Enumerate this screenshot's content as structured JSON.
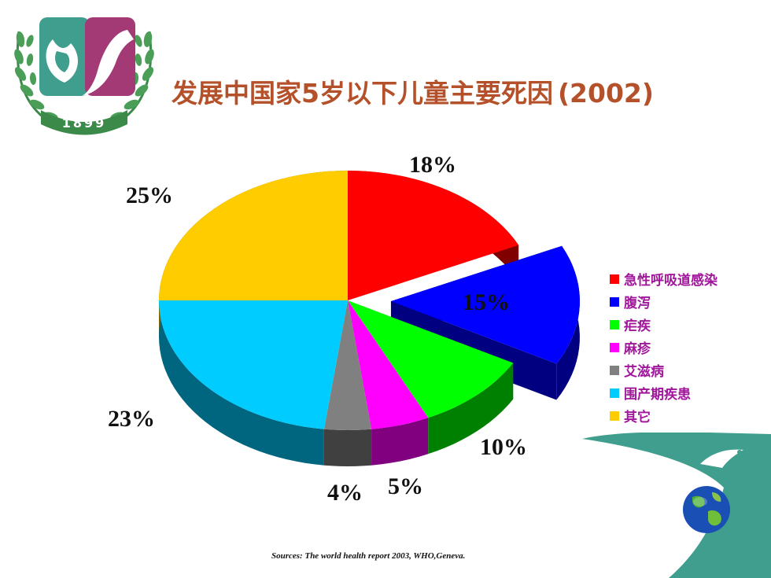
{
  "slide": {
    "title": "发展中国家5岁以下儿童主要死因",
    "title_year": "(2002)",
    "logo_year": "1899",
    "source": "Sources: The world health report 2003, WHO,Geneva."
  },
  "colors": {
    "title": "#b5512a",
    "legend_text": "#a0179b",
    "deco_teal": "#3f9e8e"
  },
  "chart_data": {
    "type": "pie",
    "title": "发展中国家5岁以下儿童主要死因(2002)",
    "legend_position": "right",
    "exploded_slice": "腹泻",
    "slices": [
      {
        "label": "急性呼吸道感染",
        "value": 18,
        "display": "18%",
        "color": "#ff0000",
        "side": "#800000"
      },
      {
        "label": "腹泻",
        "value": 15,
        "display": "15%",
        "color": "#0000ff",
        "side": "#000080"
      },
      {
        "label": "疟疾",
        "value": 10,
        "display": "10%",
        "color": "#00ff00",
        "side": "#008000"
      },
      {
        "label": "麻疹",
        "value": 5,
        "display": "5%",
        "color": "#ff00ff",
        "side": "#800080"
      },
      {
        "label": "艾滋病",
        "value": 4,
        "display": "4%",
        "color": "#808080",
        "side": "#404040"
      },
      {
        "label": "围产期疾患",
        "value": 23,
        "display": "23%",
        "color": "#00ccff",
        "side": "#006680"
      },
      {
        "label": "其它",
        "value": 25,
        "display": "25%",
        "color": "#ffcc00",
        "side": "#806600"
      }
    ]
  }
}
